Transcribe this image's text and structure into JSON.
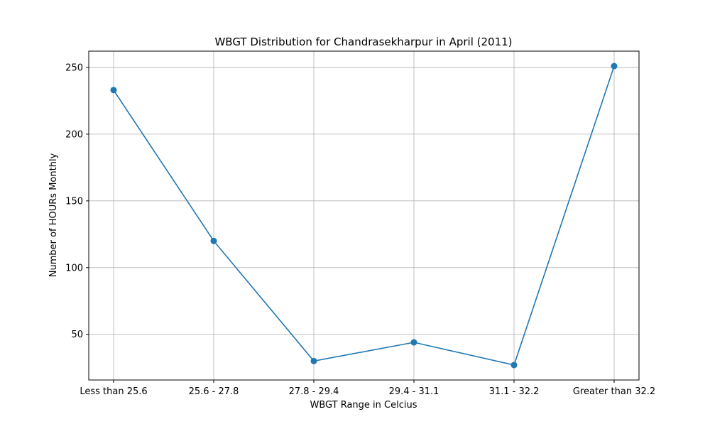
{
  "chart_data": {
    "type": "line",
    "title": "WBGT Distribution for Chandrasekharpur in April (2011)",
    "xlabel": "WBGT Range in Celcius",
    "ylabel": "Number of HOURs Monthly",
    "categories": [
      "Less than 25.6",
      "25.6 - 27.8",
      "27.8 - 29.4",
      "29.4 - 31.1",
      "31.1 - 32.2",
      "Greater than 32.2"
    ],
    "series": [
      {
        "values": [
          233,
          120,
          30,
          44,
          27,
          251
        ]
      }
    ],
    "yticks": [
      50,
      100,
      150,
      200,
      250
    ],
    "ylim": [
      15.8,
      262.2
    ],
    "grid": true,
    "line_color": "#1f77b4",
    "marker": "circle"
  }
}
